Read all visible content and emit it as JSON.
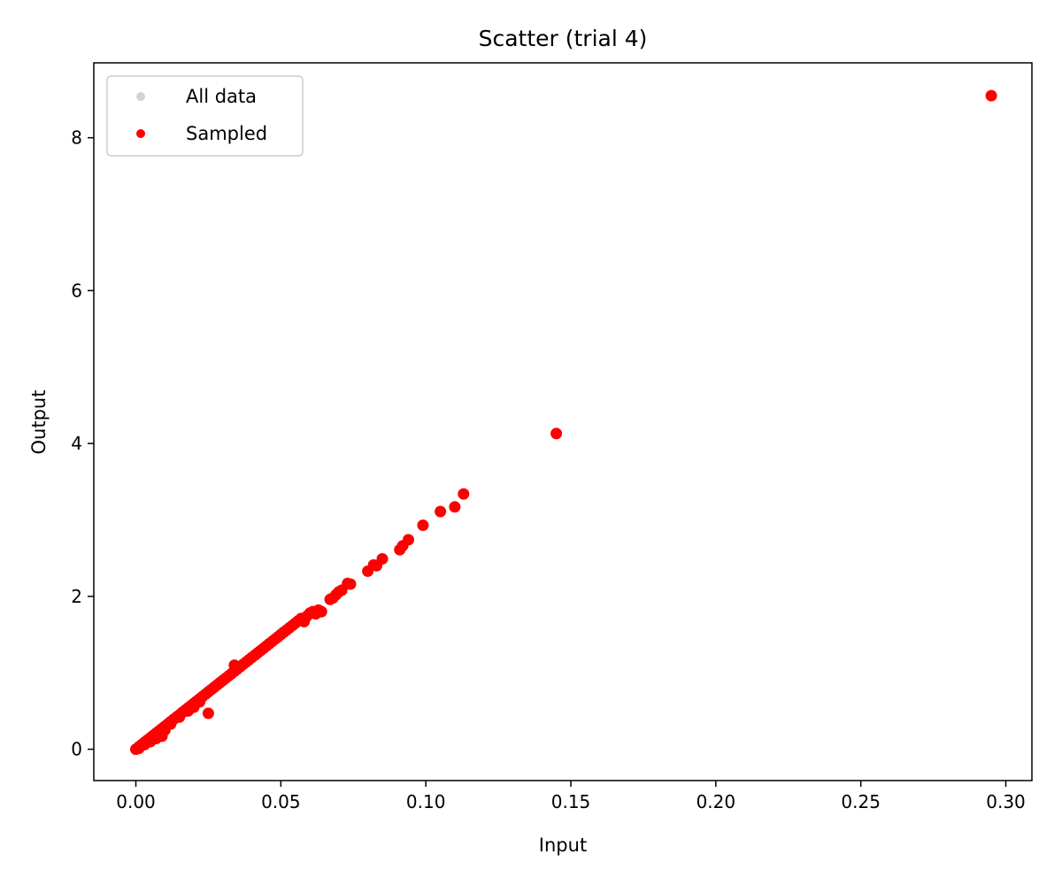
{
  "chart_data": {
    "type": "scatter",
    "title": "Scatter (trial 4)",
    "xlabel": "Input",
    "ylabel": "Output",
    "xlim": [
      -0.0145,
      0.309
    ],
    "ylim": [
      -0.41,
      8.98
    ],
    "x_ticks": [
      0.0,
      0.05,
      0.1,
      0.15,
      0.2,
      0.25,
      0.3
    ],
    "x_tick_labels": [
      "0.00",
      "0.05",
      "0.10",
      "0.15",
      "0.20",
      "0.25",
      "0.30"
    ],
    "y_ticks": [
      0,
      2,
      4,
      6,
      8
    ],
    "y_tick_labels": [
      "0",
      "2",
      "4",
      "6",
      "8"
    ],
    "grid": false,
    "legend_position": "top-left",
    "series": [
      {
        "name": "All data",
        "color": "#d3d3d3",
        "x": [],
        "y": []
      },
      {
        "name": "Sampled",
        "color": "#ff0000",
        "x": [
          0.0,
          0.001,
          0.002,
          0.003,
          0.004,
          0.005,
          0.006,
          0.007,
          0.008,
          0.009,
          0.01,
          0.011,
          0.012,
          0.013,
          0.014,
          0.015,
          0.016,
          0.017,
          0.018,
          0.019,
          0.02,
          0.021,
          0.022,
          0.023,
          0.024,
          0.025,
          0.026,
          0.027,
          0.028,
          0.029,
          0.03,
          0.031,
          0.032,
          0.033,
          0.034,
          0.035,
          0.036,
          0.037,
          0.038,
          0.039,
          0.04,
          0.041,
          0.042,
          0.043,
          0.044,
          0.045,
          0.046,
          0.047,
          0.048,
          0.049,
          0.05,
          0.051,
          0.052,
          0.053,
          0.054,
          0.055,
          0.056,
          0.057,
          0.058,
          0.059,
          0.06,
          0.061,
          0.062,
          0.063,
          0.064,
          0.001,
          0.003,
          0.005,
          0.007,
          0.009,
          0.002,
          0.004,
          0.006,
          0.008,
          0.01,
          0.012,
          0.015,
          0.018,
          0.02,
          0.022,
          0.025,
          0.034,
          0.067,
          0.068,
          0.069,
          0.07,
          0.071,
          0.073,
          0.074,
          0.08,
          0.082,
          0.083,
          0.085,
          0.091,
          0.092,
          0.094,
          0.099,
          0.105,
          0.11,
          0.113,
          0.145,
          0.295
        ],
        "y": [
          0.0,
          0.03,
          0.06,
          0.09,
          0.12,
          0.15,
          0.18,
          0.21,
          0.24,
          0.27,
          0.3,
          0.33,
          0.36,
          0.39,
          0.42,
          0.45,
          0.48,
          0.51,
          0.54,
          0.57,
          0.6,
          0.63,
          0.66,
          0.69,
          0.72,
          0.75,
          0.78,
          0.81,
          0.84,
          0.87,
          0.9,
          0.93,
          0.96,
          0.99,
          1.02,
          1.05,
          1.08,
          1.11,
          1.14,
          1.17,
          1.2,
          1.23,
          1.26,
          1.29,
          1.32,
          1.35,
          1.38,
          1.41,
          1.44,
          1.47,
          1.5,
          1.53,
          1.56,
          1.59,
          1.62,
          1.65,
          1.68,
          1.71,
          1.67,
          1.74,
          1.78,
          1.8,
          1.77,
          1.82,
          1.8,
          0.01,
          0.06,
          0.1,
          0.14,
          0.17,
          0.05,
          0.11,
          0.16,
          0.2,
          0.25,
          0.33,
          0.42,
          0.5,
          0.55,
          0.62,
          0.47,
          1.1,
          1.96,
          1.98,
          2.02,
          2.06,
          2.08,
          2.17,
          2.16,
          2.33,
          2.41,
          2.4,
          2.49,
          2.61,
          2.66,
          2.74,
          2.93,
          3.11,
          3.17,
          3.34,
          4.13,
          8.55
        ]
      }
    ]
  }
}
